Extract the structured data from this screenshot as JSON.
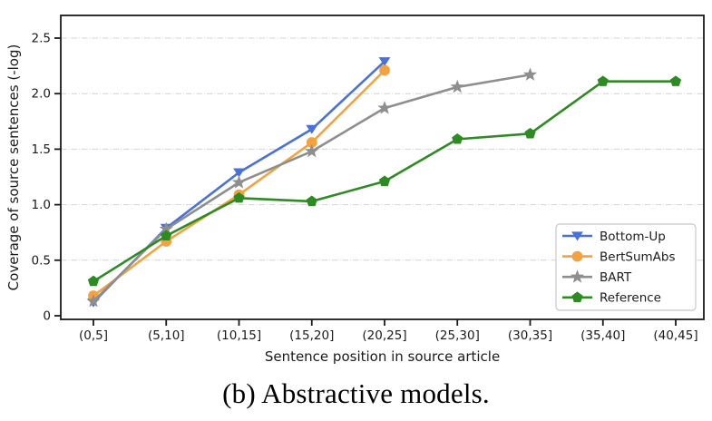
{
  "caption": "(b) Abstractive models.",
  "colors": {
    "bottom_up": "#4a70d9",
    "bertsumabs": "#f2a340",
    "bart": "#8e8e8e",
    "reference": "#2e8b24",
    "grid": "#d4d4d4",
    "axis": "#1a1a1a",
    "legend_border": "#c8c8c8"
  },
  "chart_data": {
    "type": "line",
    "title": "",
    "xlabel": "Sentence position in source article",
    "ylabel": "Coverage of source sentences (-log)",
    "categories": [
      "(0,5]",
      "(5,10]",
      "(10,15]",
      "(15,20]",
      "(20,25]",
      "(25,30]",
      "(30,35]",
      "(35,40]",
      "(40,45]"
    ],
    "yticks": [
      0,
      0.5,
      1.0,
      1.5,
      2.0,
      2.5
    ],
    "ylim": [
      -0.03,
      2.7
    ],
    "grid": "horizontal, dash-dot",
    "legend_position": "lower right",
    "series": [
      {
        "name": "Bottom-Up",
        "color": "#4a70d9",
        "marker": "triangle-down",
        "values": [
          0.12,
          0.79,
          1.29,
          1.68,
          2.29,
          null,
          null,
          null,
          null
        ]
      },
      {
        "name": "BertSumAbs",
        "color": "#f2a340",
        "marker": "circle",
        "values": [
          0.18,
          0.67,
          1.09,
          1.56,
          2.21,
          null,
          null,
          null,
          null
        ]
      },
      {
        "name": "BART",
        "color": "#8e8e8e",
        "marker": "star",
        "values": [
          0.13,
          0.78,
          1.2,
          1.48,
          1.87,
          2.06,
          2.17,
          null,
          null
        ]
      },
      {
        "name": "Reference",
        "color": "#2e8b24",
        "marker": "pentagon",
        "values": [
          0.31,
          0.72,
          1.06,
          1.03,
          1.21,
          1.59,
          1.64,
          2.11,
          2.11
        ]
      }
    ]
  }
}
